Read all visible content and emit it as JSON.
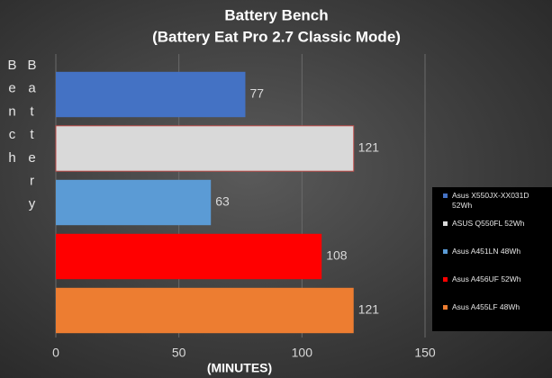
{
  "chart_data": {
    "type": "bar",
    "orientation": "horizontal",
    "title": "Battery Bench",
    "subtitle": "(Battery Eat Pro 2.7 Classic Mode)",
    "x_label": "(MINUTES)",
    "y_label": "Battery Bench",
    "series": [
      {
        "name": "Asus X550JX-XX031D 52Wh",
        "color": "#4472c4",
        "values": [
          77
        ]
      },
      {
        "name": "ASUS Q550FL 52Wh",
        "color": "#d9d9d9",
        "values": [
          121
        ]
      },
      {
        "name": "Asus A451LN 48Wh",
        "color": "#5b9bd5",
        "values": [
          63
        ]
      },
      {
        "name": "Asus A456UF 52Wh",
        "color": "#ff0000",
        "values": [
          108
        ]
      },
      {
        "name": "Asus A455LF 48Wh",
        "color": "#ed7d31",
        "values": [
          121
        ]
      }
    ],
    "xlim": [
      0,
      150
    ],
    "xticks": [
      0,
      50,
      100,
      150
    ],
    "grid": true,
    "legend": "right"
  }
}
